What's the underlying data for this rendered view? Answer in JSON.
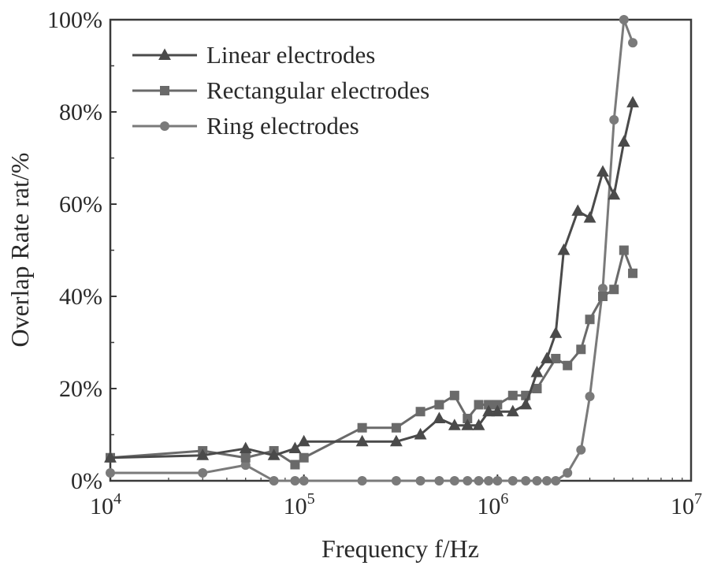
{
  "chart_data": {
    "type": "line",
    "xscale": "log",
    "xlim": [
      10000,
      10000000
    ],
    "ylim": [
      0,
      100
    ],
    "xlabel": "Frequency f/Hz",
    "ylabel": "Overlap Rate rat/%",
    "x_ticks": [
      {
        "base": "10",
        "exp": "4",
        "value": 10000
      },
      {
        "base": "10",
        "exp": "5",
        "value": 100000
      },
      {
        "base": "10",
        "exp": "6",
        "value": 1000000
      },
      {
        "base": "10",
        "exp": "7",
        "value": 10000000
      }
    ],
    "y_ticks": [
      {
        "label": "0%",
        "value": 0
      },
      {
        "label": "20%",
        "value": 20
      },
      {
        "label": "40%",
        "value": 40
      },
      {
        "label": "60%",
        "value": 60
      },
      {
        "label": "80%",
        "value": 80
      },
      {
        "label": "100%",
        "value": 100
      }
    ],
    "legend_position": "top-left",
    "series": [
      {
        "name": "Linear electrodes",
        "marker": "triangle",
        "color": "#4a4a4a",
        "x": [
          10000,
          30000,
          50000,
          70000,
          90000,
          100000,
          200000,
          300000,
          400000,
          500000,
          600000,
          700000,
          800000,
          900000,
          1000000,
          1200000,
          1400000,
          1600000,
          1800000,
          2000000,
          2200000,
          2600000,
          3000000,
          3500000,
          4000000,
          4500000,
          5000000
        ],
        "y": [
          5,
          5.5,
          7,
          5.5,
          7,
          8.5,
          8.5,
          8.5,
          10,
          13.5,
          12,
          12,
          12,
          15,
          15,
          15,
          16.5,
          23.5,
          26.5,
          32,
          50,
          58.5,
          57,
          67,
          62,
          73.5,
          82
        ]
      },
      {
        "name": "Rectangular electrodes",
        "marker": "square",
        "color": "#6a6a6a",
        "x": [
          10000,
          30000,
          50000,
          70000,
          90000,
          100000,
          200000,
          300000,
          400000,
          500000,
          600000,
          700000,
          800000,
          900000,
          1000000,
          1200000,
          1400000,
          1600000,
          2000000,
          2300000,
          2700000,
          3000000,
          3500000,
          4000000,
          4500000,
          5000000
        ],
        "y": [
          5,
          6.5,
          5,
          6.5,
          3.5,
          5,
          11.5,
          11.5,
          15,
          16.5,
          18.5,
          13.5,
          16.5,
          16.5,
          16.5,
          18.5,
          18.5,
          20,
          26.5,
          25,
          28.5,
          35,
          40,
          41.5,
          50,
          45
        ]
      },
      {
        "name": "Ring electrodes",
        "marker": "circle",
        "color": "#7a7a7a",
        "x": [
          10000,
          30000,
          50000,
          70000,
          90000,
          100000,
          200000,
          300000,
          400000,
          500000,
          600000,
          700000,
          800000,
          900000,
          1000000,
          1200000,
          1400000,
          1600000,
          1800000,
          2000000,
          2300000,
          2700000,
          3000000,
          3500000,
          4000000,
          4500000,
          5000000
        ],
        "y": [
          1.7,
          1.7,
          3.4,
          0,
          0,
          0,
          0,
          0,
          0,
          0,
          0,
          0,
          0,
          0,
          0,
          0,
          0,
          0,
          0,
          0,
          1.7,
          6.7,
          18.3,
          41.7,
          78.3,
          100,
          95
        ]
      }
    ]
  }
}
